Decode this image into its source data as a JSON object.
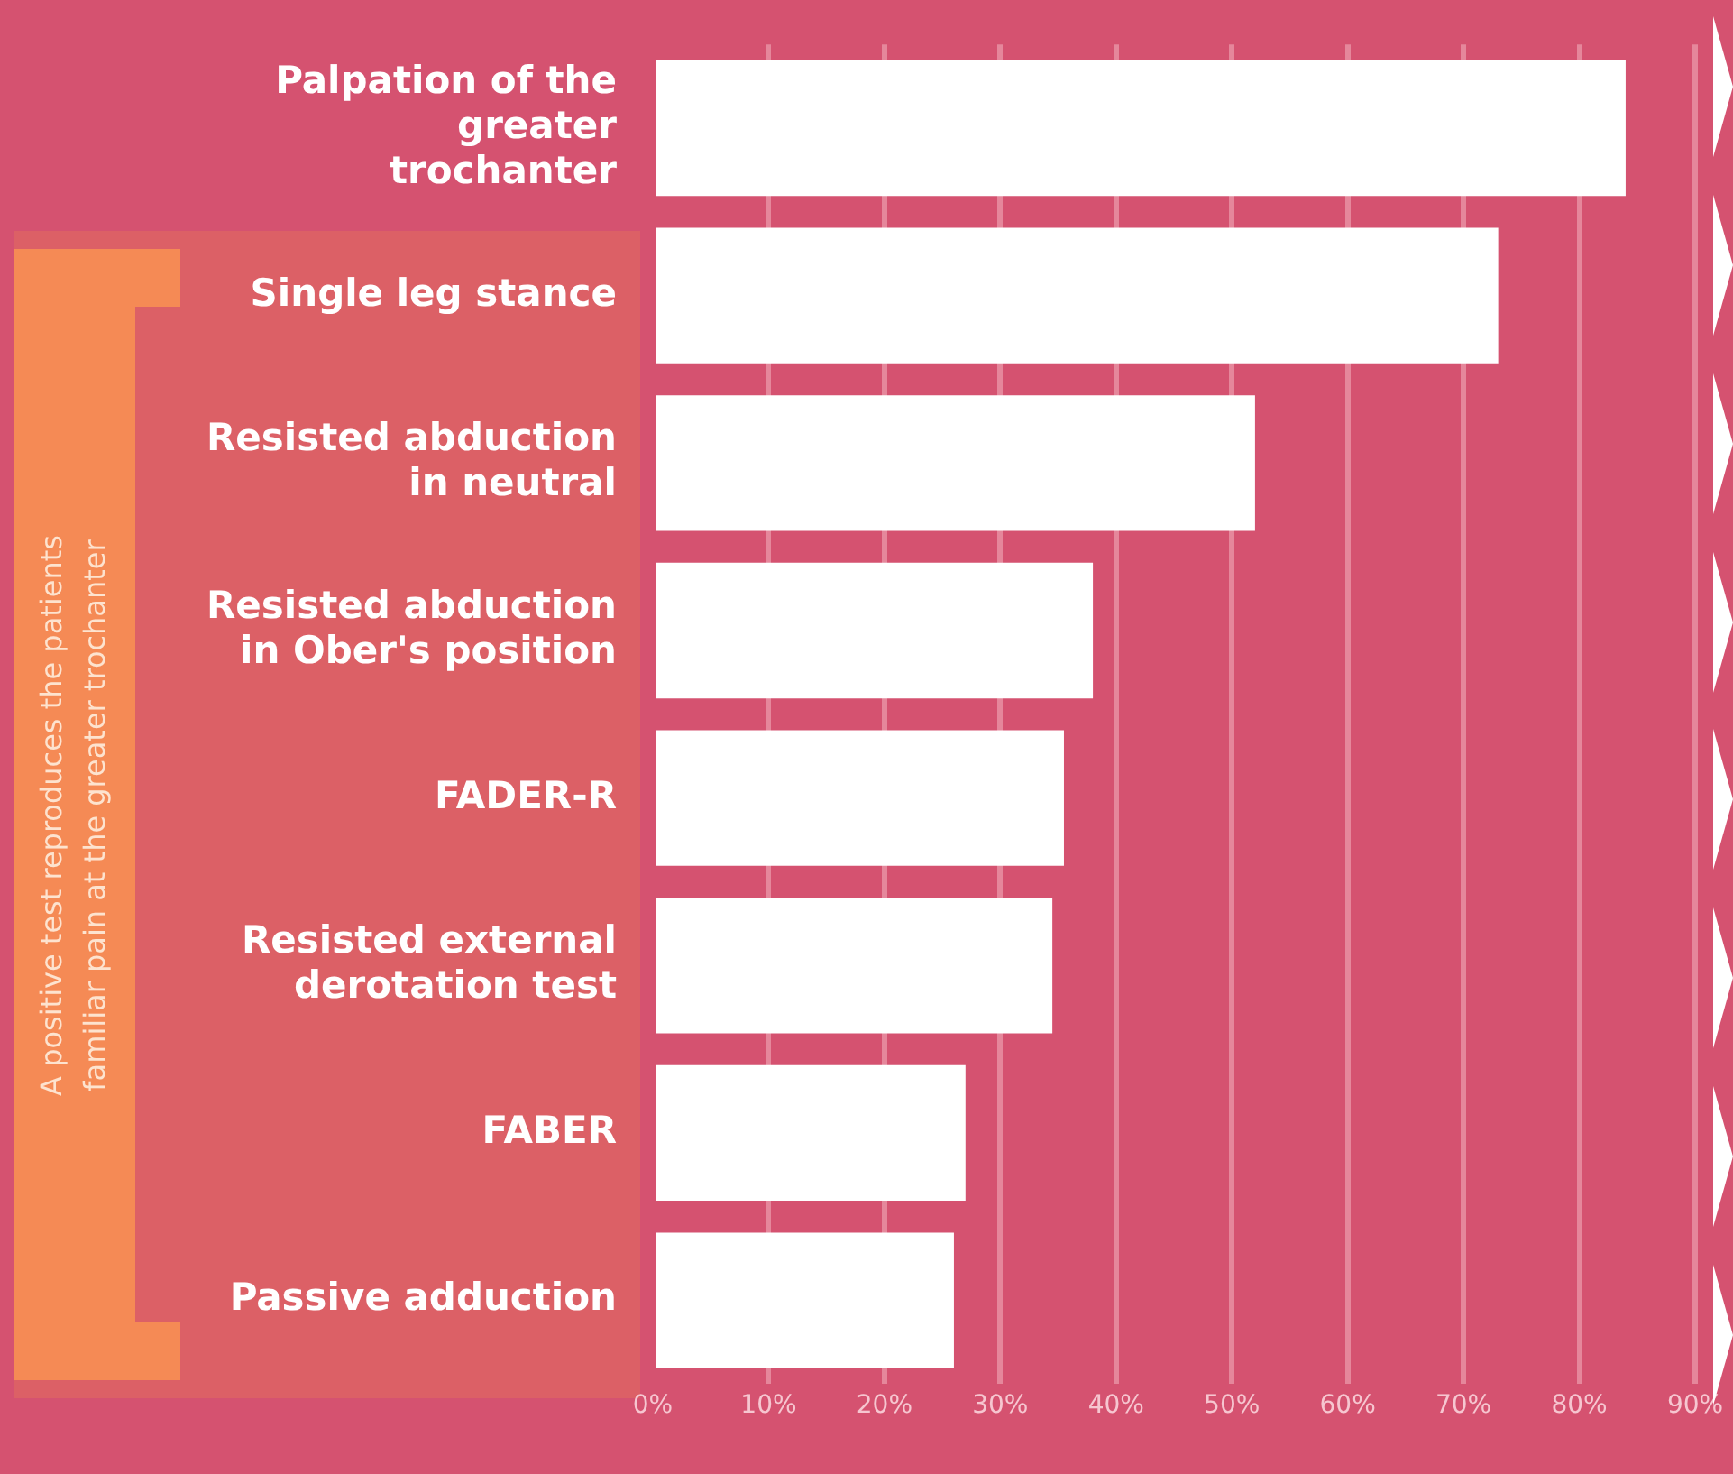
{
  "chart_data": {
    "type": "bar",
    "orientation": "horizontal",
    "categories": [
      "Palpation of the\ngreater\ntrochanter",
      "Single leg stance",
      "Resisted abduction\nin neutral",
      "Resisted abduction\nin Ober's position",
      "FADER-R",
      "Resisted external\nderotation test",
      "FABER",
      "Passive adduction"
    ],
    "values": [
      84,
      73,
      52,
      38,
      35.5,
      34.5,
      27,
      26
    ],
    "color": "#ffffff",
    "xlim": [
      0,
      90
    ],
    "xticks": [
      {
        "value": 0,
        "label": "0%"
      },
      {
        "value": 10,
        "label": "10%"
      },
      {
        "value": 20,
        "label": "20%"
      },
      {
        "value": 30,
        "label": "30%"
      },
      {
        "value": 40,
        "label": "40%"
      },
      {
        "value": 50,
        "label": "50%"
      },
      {
        "value": 60,
        "label": "60%"
      },
      {
        "value": 70,
        "label": "70%"
      },
      {
        "value": 80,
        "label": "80%"
      },
      {
        "value": 90,
        "label": "90%"
      }
    ],
    "grid": "x",
    "legend": false,
    "annotations": [
      "A positive test reproduces the patients\nfamiliar pain at the greater trochanter"
    ]
  }
}
